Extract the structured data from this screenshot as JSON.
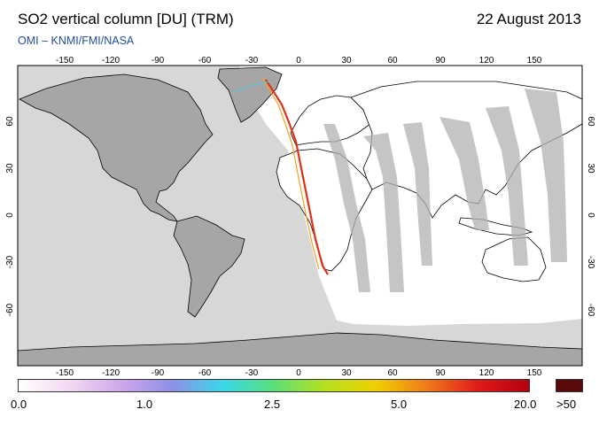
{
  "header": {
    "title": "SO2 vertical column [DU] (TRM)",
    "date": "22 August 2013",
    "credit": "OMI – KNMI/FMI/NASA"
  },
  "map": {
    "lon_ticks": [
      "-150",
      "-120",
      "-90",
      "-60",
      "-30",
      "0",
      "30",
      "60",
      "90",
      "120",
      "150"
    ],
    "lat_ticks": [
      "60",
      "30",
      "0",
      "-30",
      "-60"
    ],
    "colors": {
      "land": "#a6a6a6",
      "ocean": "#d7d7d7",
      "data_swath": "#ffffff",
      "coast": "#000000"
    }
  },
  "colorbar": {
    "labels": [
      "0.0",
      "1.0",
      "2.5",
      "5.0",
      "20.0"
    ],
    "overflow_label": ">50",
    "overflow_color": "#5a0a0a",
    "gradient": [
      "#ffffff",
      "#f3d9f3",
      "#cfa7ea",
      "#8f8fe6",
      "#3ad7ea",
      "#59e07a",
      "#b6e020",
      "#f0d000",
      "#f07a1a",
      "#e01a1a",
      "#b40010"
    ]
  }
}
